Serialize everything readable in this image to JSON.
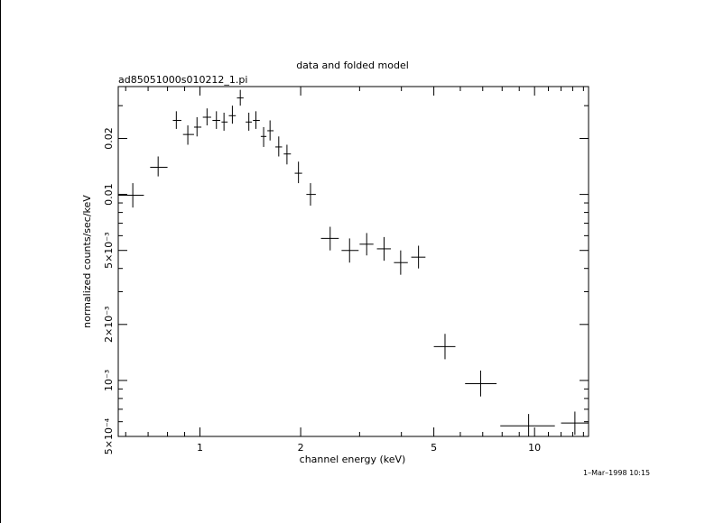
{
  "chart_data": {
    "type": "scatter",
    "title": "data and folded model",
    "subtitle": "ad85051000s010212_1.pi",
    "xlabel": "channel energy (keV)",
    "ylabel": "normalized counts/sec/keV",
    "x_scale": "log",
    "y_scale": "log",
    "xlim": [
      0.57,
      14.5
    ],
    "ylim": [
      0.0005,
      0.038
    ],
    "grid": false,
    "x_ticks": [
      {
        "value": 1,
        "label": "1"
      },
      {
        "value": 2,
        "label": "2"
      },
      {
        "value": 5,
        "label": "5"
      },
      {
        "value": 10,
        "label": "10"
      }
    ],
    "y_ticks": [
      {
        "value": 0.0005,
        "label": "5×10⁻⁴"
      },
      {
        "value": 0.001,
        "label": "10⁻³"
      },
      {
        "value": 0.002,
        "label": "2×10⁻³"
      },
      {
        "value": 0.005,
        "label": "5×10⁻³"
      },
      {
        "value": 0.01,
        "label": "0.01"
      },
      {
        "value": 0.02,
        "label": "0.02"
      }
    ],
    "series": [
      {
        "points": [
          {
            "x": 0.63,
            "xerr": [
              0.57,
              0.68
            ],
            "y": 0.0099,
            "yerr": [
              0.0085,
              0.0115
            ]
          },
          {
            "x": 0.75,
            "xerr": [
              0.71,
              0.8
            ],
            "y": 0.014,
            "yerr": [
              0.0125,
              0.016
            ]
          },
          {
            "x": 0.85,
            "xerr": [
              0.83,
              0.88
            ],
            "y": 0.025,
            "yerr": [
              0.0225,
              0.028
            ]
          },
          {
            "x": 0.92,
            "xerr": [
              0.89,
              0.96
            ],
            "y": 0.021,
            "yerr": [
              0.0185,
              0.0235
            ]
          },
          {
            "x": 0.98,
            "xerr": [
              0.96,
              1.01
            ],
            "y": 0.023,
            "yerr": [
              0.0205,
              0.026
            ]
          },
          {
            "x": 1.05,
            "xerr": [
              1.02,
              1.08
            ],
            "y": 0.026,
            "yerr": [
              0.0235,
              0.029
            ]
          },
          {
            "x": 1.12,
            "xerr": [
              1.09,
              1.15
            ],
            "y": 0.025,
            "yerr": [
              0.0225,
              0.028
            ]
          },
          {
            "x": 1.18,
            "xerr": [
              1.16,
              1.21
            ],
            "y": 0.0245,
            "yerr": [
              0.022,
              0.0275
            ]
          },
          {
            "x": 1.25,
            "xerr": [
              1.22,
              1.28
            ],
            "y": 0.0265,
            "yerr": [
              0.024,
              0.03
            ]
          },
          {
            "x": 1.32,
            "xerr": [
              1.29,
              1.35
            ],
            "y": 0.033,
            "yerr": [
              0.03,
              0.0365
            ]
          },
          {
            "x": 1.4,
            "xerr": [
              1.37,
              1.43
            ],
            "y": 0.0245,
            "yerr": [
              0.022,
              0.0275
            ]
          },
          {
            "x": 1.47,
            "xerr": [
              1.44,
              1.51
            ],
            "y": 0.025,
            "yerr": [
              0.0225,
              0.028
            ]
          },
          {
            "x": 1.55,
            "xerr": [
              1.52,
              1.58
            ],
            "y": 0.0205,
            "yerr": [
              0.018,
              0.023
            ]
          },
          {
            "x": 1.62,
            "xerr": [
              1.59,
              1.66
            ],
            "y": 0.022,
            "yerr": [
              0.0195,
              0.025
            ]
          },
          {
            "x": 1.72,
            "xerr": [
              1.68,
              1.76
            ],
            "y": 0.018,
            "yerr": [
              0.016,
              0.0205
            ]
          },
          {
            "x": 1.82,
            "xerr": [
              1.78,
              1.87
            ],
            "y": 0.0165,
            "yerr": [
              0.0145,
              0.0185
            ]
          },
          {
            "x": 1.97,
            "xerr": [
              1.92,
              2.02
            ],
            "y": 0.013,
            "yerr": [
              0.0115,
              0.015
            ]
          },
          {
            "x": 2.14,
            "xerr": [
              2.08,
              2.22
            ],
            "y": 0.01,
            "yerr": [
              0.0087,
              0.0115
            ]
          },
          {
            "x": 2.45,
            "xerr": [
              2.3,
              2.6
            ],
            "y": 0.0058,
            "yerr": [
              0.005,
              0.0067
            ]
          },
          {
            "x": 2.8,
            "xerr": [
              2.65,
              2.98
            ],
            "y": 0.005,
            "yerr": [
              0.0043,
              0.0058
            ]
          },
          {
            "x": 3.15,
            "xerr": [
              3.0,
              3.3
            ],
            "y": 0.0054,
            "yerr": [
              0.0047,
              0.0062
            ]
          },
          {
            "x": 3.55,
            "xerr": [
              3.38,
              3.72
            ],
            "y": 0.0051,
            "yerr": [
              0.0044,
              0.0059
            ]
          },
          {
            "x": 3.98,
            "xerr": [
              3.8,
              4.18
            ],
            "y": 0.0043,
            "yerr": [
              0.0037,
              0.005
            ]
          },
          {
            "x": 4.5,
            "xerr": [
              4.28,
              4.72
            ],
            "y": 0.0046,
            "yerr": [
              0.004,
              0.0053
            ]
          },
          {
            "x": 5.4,
            "xerr": [
              5.0,
              5.8
            ],
            "y": 0.00152,
            "yerr": [
              0.0013,
              0.00178
            ]
          },
          {
            "x": 6.9,
            "xerr": [
              6.2,
              7.7
            ],
            "y": 0.00096,
            "yerr": [
              0.00082,
              0.00113
            ]
          },
          {
            "x": 9.6,
            "xerr": [
              7.9,
              11.5
            ],
            "y": 0.00057,
            "yerr": [
              0.0005,
              0.00066
            ]
          },
          {
            "x": 13.2,
            "xerr": [
              12.0,
              14.5
            ],
            "y": 0.00059,
            "yerr": [
              0.00051,
              0.00068
            ]
          }
        ]
      }
    ]
  },
  "footer": {
    "timestamp": "1–Mar–1998 10:15"
  }
}
